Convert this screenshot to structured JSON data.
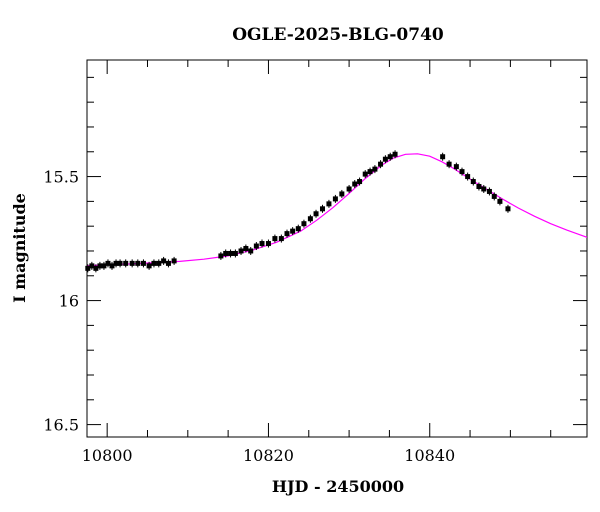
{
  "chart_data": {
    "type": "scatter",
    "title": "OGLE-2025-BLG-0740",
    "xlabel": "HJD - 2450000",
    "ylabel": "I magnitude",
    "xlim": [
      10797.5,
      10859.5
    ],
    "ylim": [
      16.55,
      15.03
    ],
    "y_inverted": true,
    "grid": false,
    "x_ticks": [
      10800,
      10820,
      10840
    ],
    "y_ticks": [
      15.5,
      16,
      16.5
    ],
    "x_minor_step": 5,
    "y_minor_step": 0.1,
    "colors": {
      "data": "#000000",
      "model": "#ff00ff",
      "frame": "#000000"
    },
    "series": [
      {
        "kind": "observed",
        "x": [
          10797.6,
          10798.1,
          10798.6,
          10799.1,
          10799.6,
          10800.1,
          10800.6,
          10801.1,
          10801.6,
          10802.3,
          10803.1,
          10803.8,
          10804.5,
          10805.2,
          10805.8,
          10806.4,
          10807.0,
          10807.6,
          10808.3,
          10814.1,
          10814.7,
          10815.3,
          10815.9,
          10816.6,
          10817.2,
          10817.8,
          10818.5,
          10819.2,
          10820.0,
          10820.8,
          10821.6,
          10822.3,
          10823.0,
          10823.7,
          10824.4,
          10825.2,
          10825.9,
          10826.7,
          10827.5,
          10828.3,
          10829.1,
          10830.0,
          10830.7,
          10831.3,
          10832.0,
          10832.6,
          10833.2,
          10833.9,
          10834.5,
          10835.1,
          10835.7,
          10841.6,
          10842.4,
          10843.3,
          10844.0,
          10844.7,
          10845.4,
          10846.1,
          10846.7,
          10847.4,
          10848.0,
          10848.7,
          10849.7
        ],
        "y": [
          15.87,
          15.86,
          15.87,
          15.86,
          15.86,
          15.85,
          15.86,
          15.85,
          15.85,
          15.85,
          15.85,
          15.85,
          15.85,
          15.86,
          15.85,
          15.85,
          15.84,
          15.85,
          15.84,
          15.82,
          15.81,
          15.81,
          15.81,
          15.8,
          15.79,
          15.8,
          15.78,
          15.77,
          15.77,
          15.75,
          15.75,
          15.73,
          15.72,
          15.71,
          15.69,
          15.67,
          15.65,
          15.63,
          15.61,
          15.59,
          15.57,
          15.55,
          15.53,
          15.52,
          15.49,
          15.48,
          15.47,
          15.45,
          15.43,
          15.42,
          15.41,
          15.42,
          15.45,
          15.46,
          15.48,
          15.5,
          15.52,
          15.54,
          15.55,
          15.56,
          15.58,
          15.6,
          15.63
        ]
      },
      {
        "kind": "model",
        "x": [
          10797.5,
          10800,
          10803,
          10806,
          10809,
          10812,
          10815,
          10818,
          10821,
          10824,
          10826,
          10828,
          10830,
          10832,
          10834,
          10835.5,
          10837,
          10838.5,
          10840,
          10841.5,
          10843,
          10845,
          10847,
          10849,
          10851,
          10853,
          10855,
          10857,
          10859.5
        ],
        "y": [
          15.86,
          15.855,
          15.852,
          15.847,
          15.842,
          15.833,
          15.82,
          15.797,
          15.765,
          15.72,
          15.676,
          15.625,
          15.568,
          15.508,
          15.455,
          15.425,
          15.41,
          15.408,
          15.418,
          15.44,
          15.468,
          15.51,
          15.55,
          15.59,
          15.627,
          15.66,
          15.69,
          15.716,
          15.745
        ]
      }
    ]
  }
}
